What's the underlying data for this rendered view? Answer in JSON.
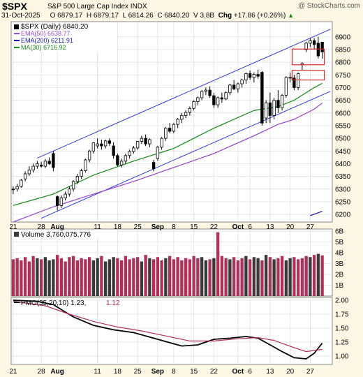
{
  "header": {
    "symbol": "$SPX",
    "name": "S&P 500 Large Cap Index INDX",
    "watermark": "@ StockCharts.com",
    "date": "31-Oct-2025",
    "open_label": "O",
    "open": "6879.17",
    "high_label": "H",
    "high": "6879.17",
    "low_label": "L",
    "low": "6814.26",
    "close_label": "C",
    "close": "6840.20",
    "volume_label": "V",
    "volume": "3.8B",
    "change_label": "Chg",
    "change": "+17.86 (+0.26%)",
    "change_arrow": "▲"
  },
  "colors": {
    "background": "#fdf8e4",
    "panel": "#ffffff",
    "grid": "#dcdcdc",
    "up_candle": "#ffffff",
    "down_candle": "#000000",
    "ema50": "#9b4fc9",
    "ema200": "#1a1aa8",
    "ma30": "#218a21",
    "channel": "#2b39d6",
    "highlight_box": "#d42a2a",
    "volume_up": "#b0305a",
    "volume_down": "#3a3a3a",
    "pmo_line": "#000000",
    "pmo_signal": "#b0305a"
  },
  "chart_data": [
    {
      "type": "candlestick",
      "title": "$SPX (Daily) 6840.20",
      "legend": [
        {
          "name": "EMA(50) 6638.77",
          "color": "#9b4fc9"
        },
        {
          "name": "EMA(200) 6211.91",
          "color": "#1a1aa8"
        },
        {
          "name": "MA(30) 6716.92",
          "color": "#218a21"
        }
      ],
      "legend_placement": "top-left",
      "ylim": [
        6170,
        6960
      ],
      "yticks": [
        6200,
        6250,
        6300,
        6350,
        6400,
        6450,
        6500,
        6550,
        6600,
        6650,
        6700,
        6750,
        6800,
        6850,
        6900
      ],
      "xticks": [
        {
          "i": 0,
          "label": "21"
        },
        {
          "i": 7,
          "label": "28"
        },
        {
          "i": 11,
          "label": "Aug"
        },
        {
          "i": 21,
          "label": "11"
        },
        {
          "i": 26,
          "label": "18"
        },
        {
          "i": 31,
          "label": "25"
        },
        {
          "i": 36,
          "label": "Sep"
        },
        {
          "i": 40,
          "label": "8"
        },
        {
          "i": 45,
          "label": "15"
        },
        {
          "i": 50,
          "label": "22"
        },
        {
          "i": 56,
          "label": "Oct"
        },
        {
          "i": 59,
          "label": "6"
        },
        {
          "i": 64,
          "label": "13"
        },
        {
          "i": 69,
          "label": "20"
        },
        {
          "i": 74,
          "label": "27"
        }
      ],
      "grid": true,
      "ohlc": [
        [
          6300,
          6310,
          6280,
          6297
        ],
        [
          6300,
          6320,
          6290,
          6310
        ],
        [
          6310,
          6340,
          6305,
          6335
        ],
        [
          6340,
          6370,
          6330,
          6360
        ],
        [
          6360,
          6390,
          6352,
          6375
        ],
        [
          6375,
          6400,
          6365,
          6390
        ],
        [
          6390,
          6410,
          6380,
          6400
        ],
        [
          6395,
          6408,
          6385,
          6390
        ],
        [
          6390,
          6418,
          6382,
          6410
        ],
        [
          6410,
          6425,
          6395,
          6400
        ],
        [
          6440,
          6450,
          6370,
          6385
        ],
        [
          6270,
          6275,
          6215,
          6235
        ],
        [
          6235,
          6275,
          6225,
          6265
        ],
        [
          6265,
          6290,
          6255,
          6280
        ],
        [
          6280,
          6310,
          6270,
          6300
        ],
        [
          6300,
          6335,
          6290,
          6330
        ],
        [
          6330,
          6360,
          6320,
          6350
        ],
        [
          6350,
          6380,
          6340,
          6372
        ],
        [
          6372,
          6420,
          6365,
          6415
        ],
        [
          6415,
          6455,
          6405,
          6450
        ],
        [
          6450,
          6485,
          6440,
          6482
        ],
        [
          6470,
          6500,
          6460,
          6478
        ],
        [
          6478,
          6495,
          6455,
          6470
        ],
        [
          6470,
          6495,
          6460,
          6490
        ],
        [
          6490,
          6500,
          6470,
          6480
        ],
        [
          6470,
          6485,
          6420,
          6432
        ],
        [
          6432,
          6440,
          6390,
          6395
        ],
        [
          6395,
          6420,
          6385,
          6410
        ],
        [
          6410,
          6440,
          6400,
          6432
        ],
        [
          6432,
          6455,
          6420,
          6448
        ],
        [
          6448,
          6470,
          6440,
          6462
        ],
        [
          6462,
          6490,
          6455,
          6488
        ],
        [
          6488,
          6510,
          6478,
          6500
        ],
        [
          6500,
          6515,
          6470,
          6478
        ],
        [
          6478,
          6500,
          6465,
          6495
        ],
        [
          6405,
          6415,
          6370,
          6380
        ],
        [
          6420,
          6470,
          6412,
          6465
        ],
        [
          6465,
          6505,
          6455,
          6500
        ],
        [
          6500,
          6545,
          6490,
          6540
        ],
        [
          6540,
          6560,
          6520,
          6528
        ],
        [
          6528,
          6560,
          6520,
          6555
        ],
        [
          6555,
          6580,
          6540,
          6575
        ],
        [
          6575,
          6600,
          6560,
          6590
        ],
        [
          6590,
          6610,
          6580,
          6602
        ],
        [
          6602,
          6625,
          6590,
          6618
        ],
        [
          6618,
          6650,
          6610,
          6645
        ],
        [
          6645,
          6665,
          6630,
          6660
        ],
        [
          6660,
          6690,
          6650,
          6685
        ],
        [
          6685,
          6700,
          6670,
          6690
        ],
        [
          6690,
          6705,
          6660,
          6668
        ],
        [
          6668,
          6680,
          6620,
          6632
        ],
        [
          6632,
          6665,
          6620,
          6660
        ],
        [
          6660,
          6680,
          6640,
          6655
        ],
        [
          6655,
          6685,
          6650,
          6680
        ],
        [
          6680,
          6715,
          6670,
          6710
        ],
        [
          6710,
          6730,
          6690,
          6695
        ],
        [
          6695,
          6720,
          6680,
          6715
        ],
        [
          6715,
          6735,
          6700,
          6730
        ],
        [
          6730,
          6760,
          6715,
          6755
        ],
        [
          6755,
          6768,
          6730,
          6740
        ],
        [
          6740,
          6760,
          6720,
          6752
        ],
        [
          6752,
          6770,
          6735,
          6745
        ],
        [
          6760,
          6765,
          6550,
          6560
        ],
        [
          6580,
          6650,
          6560,
          6640
        ],
        [
          6640,
          6680,
          6560,
          6590
        ],
        [
          6590,
          6660,
          6575,
          6650
        ],
        [
          6650,
          6690,
          6600,
          6620
        ],
        [
          6620,
          6675,
          6610,
          6670
        ],
        [
          6670,
          6745,
          6660,
          6740
        ],
        [
          6740,
          6760,
          6720,
          6738
        ],
        [
          6738,
          6750,
          6690,
          6700
        ],
        [
          6700,
          6760,
          6690,
          6755
        ],
        [
          6790,
          6800,
          6770,
          6795
        ],
        [
          6850,
          6880,
          6840,
          6875
        ],
        [
          6875,
          6895,
          6860,
          6885
        ],
        [
          6885,
          6895,
          6850,
          6870
        ],
        [
          6875,
          6900,
          6815,
          6825
        ],
        [
          6879,
          6879,
          6814,
          6840
        ]
      ],
      "series": [
        {
          "name": "EMA(50)",
          "color": "#9b4fc9",
          "points": [
            [
              0,
              6170
            ],
            [
              10,
              6230
            ],
            [
              20,
              6280
            ],
            [
              30,
              6330
            ],
            [
              40,
              6385
            ],
            [
              50,
              6440
            ],
            [
              60,
              6510
            ],
            [
              66,
              6555
            ],
            [
              70,
              6575
            ],
            [
              75,
              6615
            ],
            [
              77,
              6639
            ]
          ]
        },
        {
          "name": "MA(30)",
          "color": "#218a21",
          "points": [
            [
              0,
              6235
            ],
            [
              10,
              6280
            ],
            [
              20,
              6355
            ],
            [
              30,
              6410
            ],
            [
              40,
              6460
            ],
            [
              50,
              6540
            ],
            [
              60,
              6610
            ],
            [
              66,
              6625
            ],
            [
              70,
              6650
            ],
            [
              75,
              6700
            ],
            [
              77,
              6717
            ]
          ]
        },
        {
          "name": "EMA(200)",
          "color": "#1a1aa8",
          "points": [
            [
              74,
              6195
            ],
            [
              77,
              6212
            ]
          ]
        }
      ],
      "channel": [
        {
          "points": [
            [
              6,
              6422
            ],
            [
              79,
              6930
            ]
          ]
        },
        {
          "points": [
            [
              7,
              6185
            ],
            [
              79,
              6685
            ]
          ]
        }
      ],
      "highlight_boxes": [
        {
          "i_from": 70,
          "i_to": 77,
          "y_from": 6790,
          "y_to": 6852
        },
        {
          "i_from": 70,
          "i_to": 77,
          "y_from": 6730,
          "y_to": 6768
        }
      ]
    },
    {
      "type": "bar",
      "title": "Volume 3,760,075,776",
      "ylim": [
        0,
        6.2
      ],
      "yticks": [
        {
          "v": 1,
          "label": "1B"
        },
        {
          "v": 2,
          "label": "2B"
        },
        {
          "v": 3,
          "label": "3B"
        },
        {
          "v": 4,
          "label": "4B"
        },
        {
          "v": 5,
          "label": "5B"
        },
        {
          "v": 6,
          "label": "6B"
        }
      ],
      "values": [
        3.4,
        3.5,
        3.3,
        3.6,
        3.2,
        3.7,
        3.5,
        3.4,
        3.6,
        3.3,
        3.4,
        3.8,
        3.5,
        3.2,
        3.6,
        3.7,
        3.3,
        3.5,
        3.4,
        3.6,
        3.3,
        3.5,
        3.7,
        3.2,
        3.4,
        3.6,
        3.5,
        3.3,
        3.7,
        3.4,
        3.5,
        3.6,
        3.2,
        3.8,
        3.5,
        3.4,
        3.6,
        3.3,
        3.5,
        3.7,
        3.4,
        3.6,
        3.3,
        3.5,
        3.4,
        3.7,
        3.5,
        3.6,
        3.3,
        3.4,
        3.5,
        5.9,
        3.7,
        3.5,
        3.4,
        3.6,
        3.3,
        3.5,
        3.7,
        3.4,
        3.6,
        3.5,
        3.3,
        3.8,
        3.6,
        3.4,
        3.5,
        3.7,
        3.3,
        3.5,
        3.6,
        3.4,
        3.5,
        3.7,
        3.6,
        3.8,
        3.9,
        3.76
      ],
      "up": [
        true,
        true,
        true,
        true,
        true,
        true,
        false,
        true,
        false,
        false,
        false,
        true,
        true,
        true,
        true,
        true,
        true,
        true,
        true,
        true,
        false,
        false,
        true,
        false,
        false,
        false,
        true,
        true,
        true,
        true,
        true,
        true,
        false,
        true,
        false,
        true,
        true,
        true,
        false,
        true,
        true,
        true,
        true,
        true,
        true,
        true,
        true,
        false,
        false,
        true,
        false,
        true,
        true,
        true,
        false,
        true,
        true,
        true,
        false,
        true,
        false,
        false,
        true,
        false,
        true,
        false,
        true,
        true,
        false,
        false,
        true,
        true,
        true,
        true,
        false,
        true,
        false,
        true
      ]
    },
    {
      "type": "line",
      "title": "PMO(35,20,10) 1.23, 1.12",
      "legend": [
        {
          "name": "PMO(35,20,10) 1.23,",
          "color": "#000000"
        },
        {
          "name": "1.12",
          "color": "#b0305a"
        }
      ],
      "ylim": [
        0.85,
        2.05
      ],
      "yticks": [
        {
          "v": 1.0,
          "label": "1.00"
        },
        {
          "v": 1.25,
          "label": "1.25"
        },
        {
          "v": 1.5,
          "label": "1.50"
        },
        {
          "v": 1.75,
          "label": "1.75"
        },
        {
          "v": 2.0,
          "label": "2.00"
        }
      ],
      "series": [
        {
          "name": "PMO",
          "color": "#000000",
          "points": [
            [
              0,
              2.0
            ],
            [
              6,
              1.98
            ],
            [
              10,
              1.92
            ],
            [
              15,
              1.7
            ],
            [
              20,
              1.55
            ],
            [
              25,
              1.47
            ],
            [
              30,
              1.42
            ],
            [
              36,
              1.3
            ],
            [
              42,
              1.18
            ],
            [
              46,
              1.2
            ],
            [
              50,
              1.3
            ],
            [
              54,
              1.32
            ],
            [
              58,
              1.35
            ],
            [
              61,
              1.32
            ],
            [
              64,
              1.2
            ],
            [
              67,
              1.08
            ],
            [
              70,
              0.97
            ],
            [
              73,
              0.95
            ],
            [
              75,
              1.05
            ],
            [
              77,
              1.23
            ]
          ]
        },
        {
          "name": "Signal",
          "color": "#b0305a",
          "points": [
            [
              0,
              1.98
            ],
            [
              8,
              1.9
            ],
            [
              14,
              1.75
            ],
            [
              20,
              1.62
            ],
            [
              26,
              1.52
            ],
            [
              32,
              1.45
            ],
            [
              38,
              1.36
            ],
            [
              44,
              1.27
            ],
            [
              50,
              1.27
            ],
            [
              56,
              1.31
            ],
            [
              61,
              1.33
            ],
            [
              65,
              1.28
            ],
            [
              70,
              1.15
            ],
            [
              73,
              1.08
            ],
            [
              77,
              1.12
            ]
          ]
        }
      ]
    }
  ]
}
